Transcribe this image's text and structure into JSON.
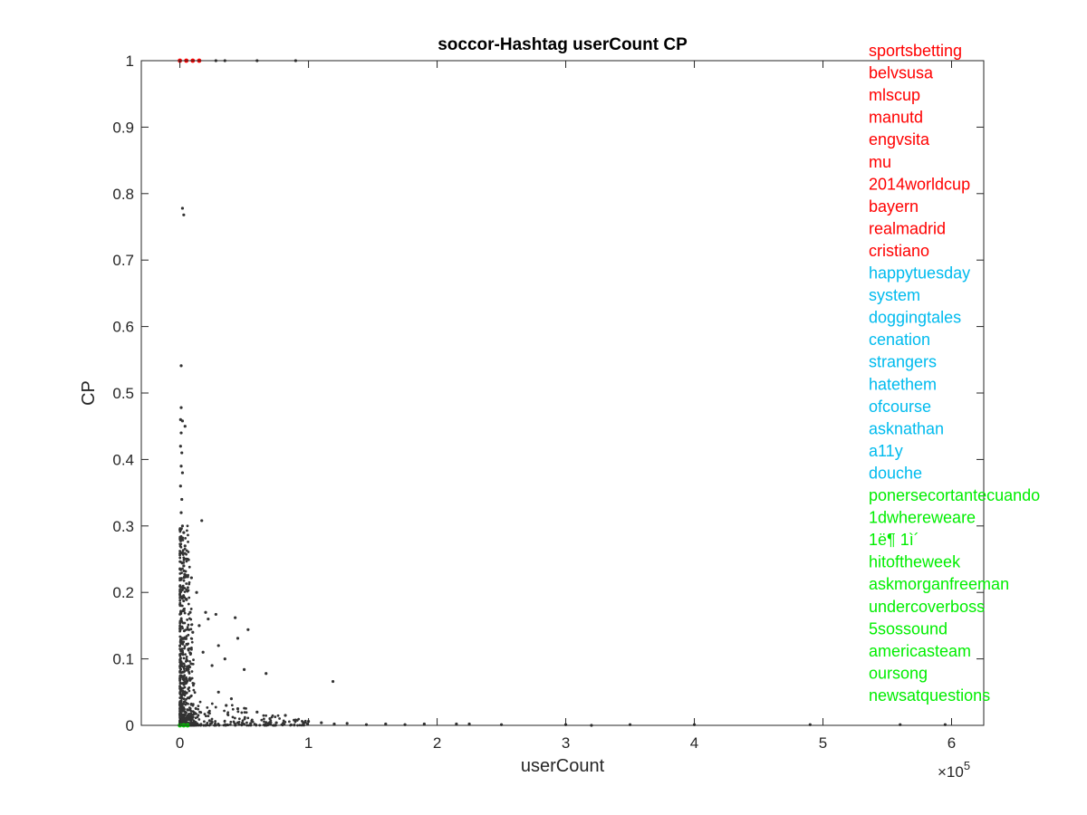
{
  "chart_data": {
    "type": "scatter",
    "title": "soccor-Hashtag userCount CP",
    "xlabel": "userCount",
    "ylabel": "CP",
    "x_exponent_label": "×10",
    "x_exponent_power": "5",
    "xlim": [
      -0.3,
      6.25
    ],
    "ylim": [
      0,
      1
    ],
    "x_scale_note": "x values in units of 1e5",
    "xticks": [
      0,
      1,
      2,
      3,
      4,
      5,
      6
    ],
    "xtick_labels": [
      "0",
      "1",
      "2",
      "3",
      "4",
      "5",
      "6"
    ],
    "yticks": [
      0,
      0.1,
      0.2,
      0.3,
      0.4,
      0.5,
      0.6,
      0.7,
      0.8,
      0.9,
      1
    ],
    "ytick_labels": [
      "0",
      "0.1",
      "0.2",
      "0.3",
      "0.4",
      "0.5",
      "0.6",
      "0.7",
      "0.8",
      "0.9",
      "1"
    ],
    "grid": false,
    "series": [
      {
        "color": "#333333",
        "points": [
          [
            0.02,
            0.778
          ],
          [
            0.03,
            0.768
          ],
          [
            0.01,
            0.541
          ],
          [
            0.01,
            0.478
          ],
          [
            0.005,
            0.46
          ],
          [
            0.02,
            0.458
          ],
          [
            0.04,
            0.45
          ],
          [
            0.01,
            0.44
          ],
          [
            0.005,
            0.42
          ],
          [
            0.015,
            0.41
          ],
          [
            0.01,
            0.39
          ],
          [
            0.02,
            0.38
          ],
          [
            0.005,
            0.36
          ],
          [
            0.015,
            0.34
          ],
          [
            0.01,
            0.32
          ],
          [
            0.17,
            0.308
          ],
          [
            0.02,
            0.3
          ],
          [
            0.03,
            0.29
          ],
          [
            0.01,
            0.28
          ],
          [
            0.04,
            0.27
          ],
          [
            0.02,
            0.26
          ],
          [
            0.06,
            0.25
          ],
          [
            0.03,
            0.24
          ],
          [
            0.09,
            0.222
          ],
          [
            0.13,
            0.2
          ],
          [
            0.05,
            0.19
          ],
          [
            0.08,
            0.17
          ],
          [
            0.2,
            0.17
          ],
          [
            0.28,
            0.167
          ],
          [
            0.43,
            0.162
          ],
          [
            0.22,
            0.16
          ],
          [
            0.15,
            0.15
          ],
          [
            0.53,
            0.144
          ],
          [
            0.1,
            0.14
          ],
          [
            0.45,
            0.131
          ],
          [
            0.3,
            0.12
          ],
          [
            0.18,
            0.11
          ],
          [
            0.35,
            0.1
          ],
          [
            0.25,
            0.09
          ],
          [
            0.5,
            0.084
          ],
          [
            0.67,
            0.078
          ],
          [
            1.19,
            0.066
          ],
          [
            0.3,
            0.05
          ],
          [
            0.4,
            0.04
          ],
          [
            0.36,
            0.03
          ],
          [
            0.45,
            0.025
          ],
          [
            0.6,
            0.02
          ],
          [
            0.82,
            0.015
          ],
          [
            0.7,
            0.01
          ],
          [
            0.9,
            0.008
          ],
          [
            1.0,
            0.006
          ],
          [
            1.1,
            0.004
          ],
          [
            1.3,
            0.003
          ],
          [
            1.6,
            0.002
          ],
          [
            1.9,
            0.002
          ],
          [
            2.15,
            0.002
          ],
          [
            2.25,
            0.002
          ],
          [
            3.0,
            0.001
          ],
          [
            3.5,
            0.001
          ],
          [
            4.0,
            0.001
          ],
          [
            4.9,
            0.001
          ],
          [
            5.6,
            0.001
          ],
          [
            5.95,
            0.001
          ],
          [
            0.25,
            0.005
          ],
          [
            0.45,
            0.004
          ],
          [
            0.55,
            0.003
          ],
          [
            0.75,
            0.004
          ],
          [
            1.2,
            0.002
          ],
          [
            1.45,
            0.001
          ],
          [
            1.75,
            0.001
          ],
          [
            2.5,
            0.001
          ],
          [
            3.2,
            0.0
          ],
          [
            0.6,
            1.0
          ],
          [
            0.9,
            1.0
          ],
          [
            0.35,
            1.0
          ],
          [
            0.28,
            1.0
          ]
        ]
      },
      {
        "color": "#ff0000",
        "points": [
          [
            0.0,
            1.0
          ],
          [
            0.05,
            1.0
          ],
          [
            0.1,
            1.0
          ],
          [
            0.15,
            1.0
          ]
        ]
      },
      {
        "color": "#00cc00",
        "points": [
          [
            0.0,
            0.0
          ],
          [
            0.03,
            0.0
          ],
          [
            0.06,
            0.0
          ]
        ]
      }
    ],
    "annotations": {
      "red": {
        "color": "#ff0000",
        "labels": [
          "sportsbetting",
          "belvsusa",
          "mlscup",
          "manutd",
          "engvsita",
          "mu",
          "2014worldcup",
          "bayern",
          "realmadrid",
          "cristiano"
        ]
      },
      "blue": {
        "color": "#00bbee",
        "labels": [
          "happytuesday",
          "system",
          "doggingtales",
          "cenation",
          "strangers",
          "hatethem",
          "ofcourse",
          "asknathan",
          "a11y",
          "douche"
        ]
      },
      "green": {
        "color": "#00ee00",
        "labels": [
          "ponersecortantecuando",
          "1dwhereweare",
          "1ë¶    1ì´",
          "hitoftheweek",
          "askmorganfreeman",
          "undercoverboss",
          "5sossound",
          "americasteam",
          "oursong",
          "newsatquestions"
        ]
      }
    }
  }
}
